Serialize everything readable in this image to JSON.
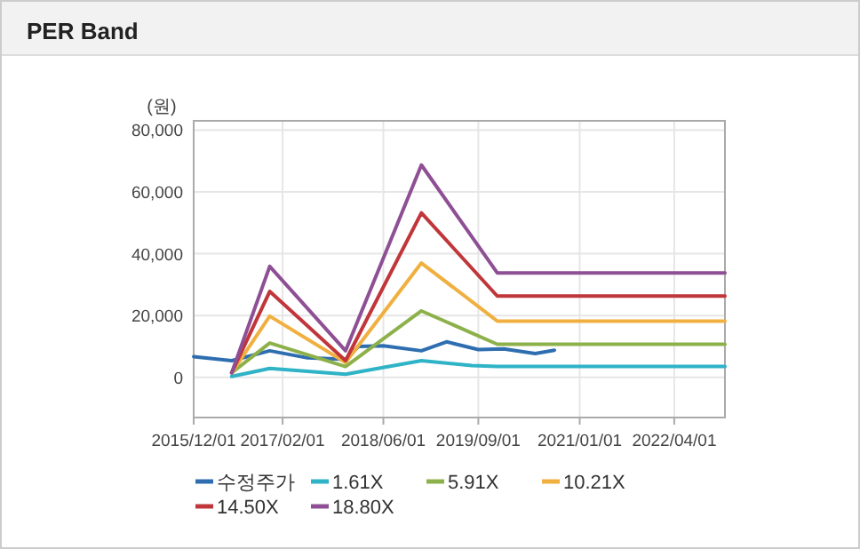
{
  "chart_data": {
    "type": "line",
    "title": "PER Band",
    "ylabel": "(원)",
    "legend": "bottom",
    "grid": true,
    "xlim": [
      "2015-12-01",
      "2022-12-01"
    ],
    "xticks": [
      {
        "value": "2015-12-01",
        "label": "2015/12/01"
      },
      {
        "value": "2017-02-01",
        "label": "2017/02/01"
      },
      {
        "value": "2018-06-01",
        "label": "2018/06/01"
      },
      {
        "value": "2019-09-01",
        "label": "2019/09/01"
      },
      {
        "value": "2021-01-01",
        "label": "2021/01/01"
      },
      {
        "value": "2022-04-01",
        "label": "2022/04/01"
      }
    ],
    "ylim": [
      -13000,
      83000
    ],
    "yticks": [
      {
        "value": 0,
        "label": "0"
      },
      {
        "value": 20000,
        "label": "20,000"
      },
      {
        "value": 40000,
        "label": "40,000"
      },
      {
        "value": 60000,
        "label": "60,000"
      },
      {
        "value": 80000,
        "label": "80,000"
      }
    ],
    "series": [
      {
        "name": "수정주가",
        "color": "#2e6eb0",
        "x": [
          "2015-12",
          "2016-06",
          "2016-12",
          "2017-06",
          "2017-12",
          "2018-02",
          "2018-06",
          "2018-12",
          "2019-04",
          "2019-09",
          "2020-01",
          "2020-06",
          "2020-09"
        ],
        "values": [
          6700,
          5400,
          8600,
          6300,
          5800,
          10000,
          10200,
          8600,
          11500,
          9000,
          9200,
          7700,
          8800
        ]
      },
      {
        "name": "1.61X",
        "color": "#2fb3c6",
        "x": [
          "2016-06",
          "2016-12",
          "2017-12",
          "2018-12",
          "2019-08",
          "2019-12",
          "2022-12"
        ],
        "values": [
          300,
          2900,
          1000,
          5400,
          3800,
          3500,
          3500
        ]
      },
      {
        "name": "5.91X",
        "color": "#8db14a",
        "x": [
          "2016-06",
          "2016-12",
          "2017-12",
          "2018-12",
          "2019-12",
          "2022-12"
        ],
        "values": [
          1500,
          11100,
          3500,
          21500,
          10700,
          10700
        ]
      },
      {
        "name": "10.21X",
        "color": "#f0b040",
        "x": [
          "2016-06",
          "2016-12",
          "2017-12",
          "2018-12",
          "2019-12",
          "2022-12"
        ],
        "values": [
          1500,
          19800,
          4800,
          37000,
          18200,
          18200
        ]
      },
      {
        "name": "14.50X",
        "color": "#c0363a",
        "x": [
          "2016-06",
          "2016-12",
          "2017-12",
          "2018-12",
          "2019-12",
          "2022-12"
        ],
        "values": [
          1500,
          27800,
          5400,
          53200,
          26300,
          26300
        ]
      },
      {
        "name": "18.80X",
        "color": "#8e4f94",
        "x": [
          "2016-06",
          "2016-12",
          "2017-12",
          "2018-12",
          "2019-12",
          "2022-12"
        ],
        "values": [
          1500,
          35900,
          8600,
          68700,
          33800,
          33800
        ]
      }
    ]
  }
}
